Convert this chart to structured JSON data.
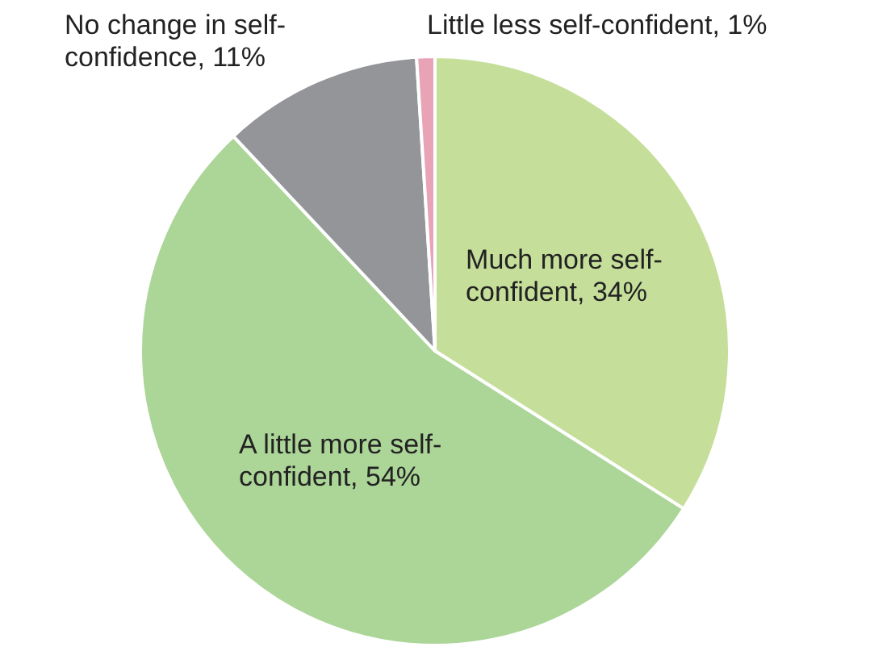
{
  "chart_data": {
    "type": "pie",
    "categories": [
      "Much more self-confident",
      "A little more self-confident",
      "No change in self-confidence",
      "Little less self-confident"
    ],
    "values": [
      34,
      54,
      11,
      1
    ],
    "colors": [
      "#c5df9a",
      "#acd598",
      "#939598",
      "#e9a3b6"
    ],
    "value_labels": [
      "34%",
      "54%",
      "11%",
      "1%"
    ],
    "legend": false
  }
}
